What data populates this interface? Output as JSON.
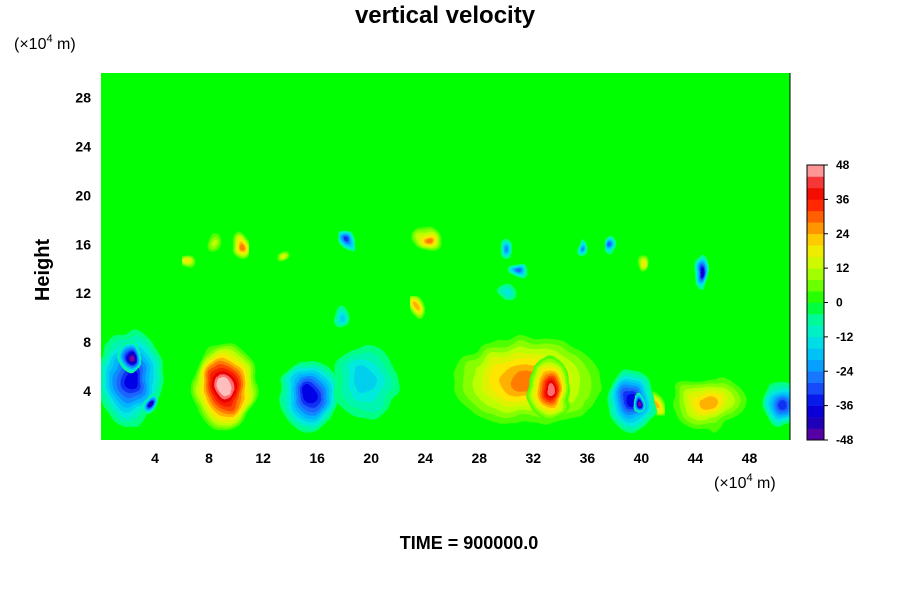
{
  "chart_data": {
    "type": "heatmap",
    "title": "vertical velocity",
    "ylabel": "Height",
    "x_unit_prefix": "(×10",
    "x_unit_exp": "4",
    "x_unit_suffix": " m)",
    "y_unit_prefix": "(×10",
    "y_unit_exp": "4",
    "y_unit_suffix": " m)",
    "xlim": [
      0,
      51
    ],
    "ylim": [
      0,
      30
    ],
    "x_ticks": [
      4,
      8,
      12,
      16,
      20,
      24,
      28,
      32,
      36,
      40,
      44,
      48
    ],
    "y_ticks": [
      4,
      8,
      12,
      16,
      20,
      24,
      28
    ],
    "colorbar": {
      "min": -48,
      "max": 48,
      "step": 4,
      "labels": [
        48,
        36,
        24,
        12,
        0,
        -12,
        -24,
        -36,
        -48
      ]
    },
    "background_value": 0,
    "features": [
      {
        "x": 9.2,
        "y": 4.3,
        "rx": 2.4,
        "ry": 3.6,
        "value": 48
      },
      {
        "x": 31.5,
        "y": 4.8,
        "rx": 5.5,
        "ry": 3.6,
        "value": 26
      },
      {
        "x": 33.2,
        "y": 4.2,
        "rx": 1.6,
        "ry": 2.6,
        "value": 44
      },
      {
        "x": 45.0,
        "y": 3.0,
        "rx": 2.8,
        "ry": 2.2,
        "value": 22
      },
      {
        "x": 41.0,
        "y": 3.0,
        "rx": 0.6,
        "ry": 0.8,
        "value": 24
      },
      {
        "x": 2.2,
        "y": 5.0,
        "rx": 2.4,
        "ry": 4.0,
        "value": -36
      },
      {
        "x": 2.0,
        "y": 7.0,
        "rx": 0.8,
        "ry": 1.3,
        "value": -46
      },
      {
        "x": 3.8,
        "y": 2.8,
        "rx": 0.6,
        "ry": 1.0,
        "value": -44
      },
      {
        "x": 15.5,
        "y": 3.6,
        "rx": 2.2,
        "ry": 3.0,
        "value": -34
      },
      {
        "x": 19.5,
        "y": 4.8,
        "rx": 2.4,
        "ry": 3.0,
        "value": -16
      },
      {
        "x": 39.3,
        "y": 3.2,
        "rx": 1.7,
        "ry": 2.6,
        "value": -36
      },
      {
        "x": 39.8,
        "y": 3.0,
        "rx": 0.4,
        "ry": 0.8,
        "value": -46
      },
      {
        "x": 50.3,
        "y": 3.0,
        "rx": 1.2,
        "ry": 2.0,
        "value": -30
      },
      {
        "x": 24.2,
        "y": 16.4,
        "rx": 1.0,
        "ry": 1.0,
        "value": 26
      },
      {
        "x": 10.2,
        "y": 16.0,
        "rx": 0.6,
        "ry": 1.0,
        "value": 26
      },
      {
        "x": 8.3,
        "y": 16.2,
        "rx": 0.6,
        "ry": 0.8,
        "value": 12
      },
      {
        "x": 6.6,
        "y": 14.4,
        "rx": 0.5,
        "ry": 0.6,
        "value": 20
      },
      {
        "x": 23.5,
        "y": 10.8,
        "rx": 0.5,
        "ry": 0.8,
        "value": 22
      },
      {
        "x": 40.2,
        "y": 14.4,
        "rx": 0.4,
        "ry": 0.7,
        "value": 20
      },
      {
        "x": 13.5,
        "y": 15.0,
        "rx": 0.4,
        "ry": 0.6,
        "value": 14
      },
      {
        "x": 18.2,
        "y": 16.4,
        "rx": 0.5,
        "ry": 0.8,
        "value": -30
      },
      {
        "x": 31.0,
        "y": 13.8,
        "rx": 0.7,
        "ry": 0.6,
        "value": -28
      },
      {
        "x": 30.0,
        "y": 15.6,
        "rx": 0.5,
        "ry": 0.8,
        "value": -24
      },
      {
        "x": 35.5,
        "y": 15.8,
        "rx": 0.4,
        "ry": 0.7,
        "value": -22
      },
      {
        "x": 44.4,
        "y": 13.8,
        "rx": 0.5,
        "ry": 1.5,
        "value": -40
      },
      {
        "x": 37.8,
        "y": 15.8,
        "rx": 0.4,
        "ry": 0.8,
        "value": -26
      },
      {
        "x": 17.8,
        "y": 10.0,
        "rx": 0.7,
        "ry": 0.8,
        "value": -14
      },
      {
        "x": 30.0,
        "y": 12.2,
        "rx": 0.6,
        "ry": 0.6,
        "value": -12
      }
    ]
  },
  "time_label": "TIME = 900000.0"
}
